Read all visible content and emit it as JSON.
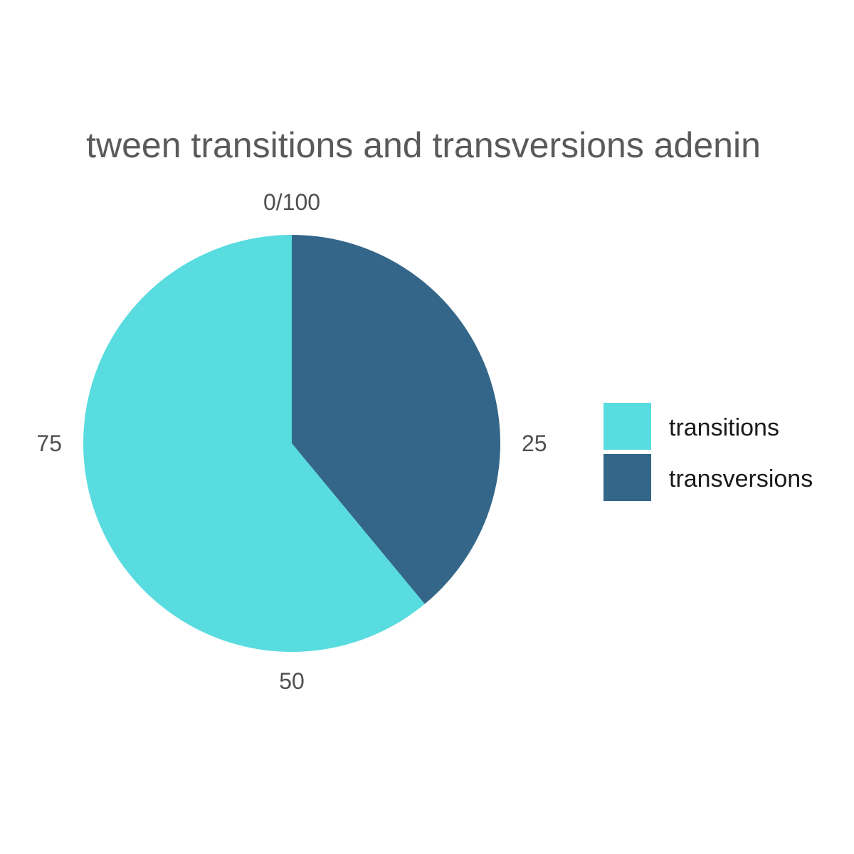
{
  "chart_data": {
    "type": "pie",
    "title": "tween transitions and transversions adenin",
    "categories": [
      "transitions",
      "transversions"
    ],
    "values": [
      61,
      39
    ],
    "colors": [
      "#58dcdf",
      "#346689"
    ],
    "axis_ticks": [
      "0/100",
      "25",
      "50",
      "75"
    ],
    "axis_range": [
      0,
      100
    ],
    "legend": {
      "position": "right",
      "entries": [
        "transitions",
        "transversions"
      ]
    },
    "grid": false
  }
}
